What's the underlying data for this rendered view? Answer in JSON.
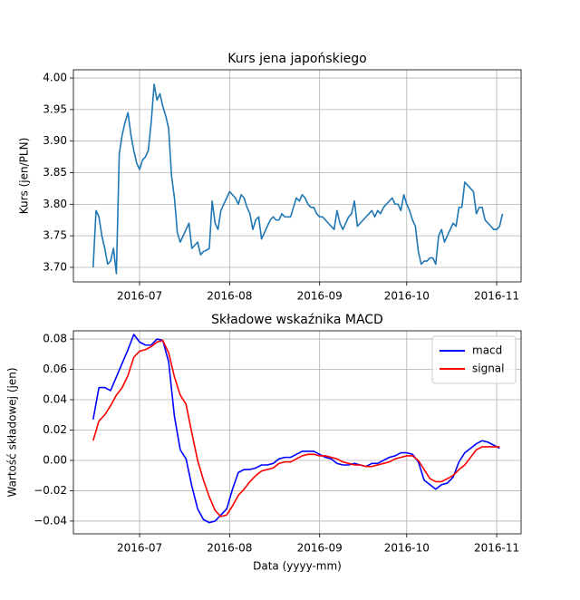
{
  "chart_data": [
    {
      "type": "line",
      "title": "Kurs jena japońskiego",
      "ylabel": "Kurs (jen/PLN)",
      "x": [
        167,
        168,
        169,
        170,
        171,
        172,
        173,
        174,
        175,
        176,
        177,
        178,
        179,
        180,
        181,
        182,
        183,
        184,
        185,
        186,
        187,
        188,
        189,
        190,
        191,
        192,
        193,
        194,
        195,
        196,
        197,
        198,
        199,
        200,
        201,
        202,
        203,
        204,
        205,
        206,
        207,
        208,
        209,
        210,
        211,
        212,
        213,
        214,
        215,
        216,
        217,
        218,
        219,
        220,
        221,
        222,
        223,
        224,
        225,
        226,
        227,
        228,
        229,
        230,
        231,
        232,
        233,
        234,
        235,
        236,
        237,
        238,
        239,
        240,
        241,
        242,
        243,
        244,
        245,
        246,
        247,
        248,
        249,
        250,
        251,
        252,
        253,
        254,
        255,
        256,
        257,
        258,
        259,
        260,
        261,
        262,
        263,
        264,
        265,
        266,
        267,
        268,
        269,
        270,
        271,
        272,
        273,
        274,
        275,
        276,
        277,
        278,
        279,
        280,
        281,
        282,
        283,
        284,
        285,
        286,
        287,
        288,
        289,
        290,
        291,
        292,
        293,
        294,
        295,
        296,
        297,
        298,
        299,
        300,
        301,
        302,
        303,
        304,
        305,
        306,
        307,
        308
      ],
      "series": [
        {
          "color": "#1f77b4",
          "values": [
            3.7,
            3.79,
            3.78,
            3.75,
            3.73,
            3.705,
            3.71,
            3.73,
            3.69,
            3.88,
            3.91,
            3.93,
            3.945,
            3.91,
            3.885,
            3.865,
            3.855,
            3.87,
            3.875,
            3.885,
            3.93,
            3.99,
            3.965,
            3.975,
            3.955,
            3.94,
            3.92,
            3.845,
            3.81,
            3.755,
            3.74,
            3.75,
            3.76,
            3.77,
            3.73,
            3.735,
            3.74,
            3.72,
            3.725,
            3.727,
            3.73,
            3.805,
            3.77,
            3.76,
            3.79,
            3.8,
            3.81,
            3.82,
            3.815,
            3.81,
            3.8,
            3.815,
            3.81,
            3.795,
            3.785,
            3.76,
            3.775,
            3.78,
            3.745,
            3.755,
            3.765,
            3.775,
            3.78,
            3.775,
            3.775,
            3.785,
            3.78,
            3.78,
            3.78,
            3.795,
            3.81,
            3.805,
            3.815,
            3.81,
            3.8,
            3.795,
            3.795,
            3.785,
            3.78,
            3.78,
            3.775,
            3.77,
            3.765,
            3.76,
            3.79,
            3.77,
            3.76,
            3.77,
            3.78,
            3.785,
            3.805,
            3.765,
            3.77,
            3.775,
            3.78,
            3.785,
            3.79,
            3.78,
            3.79,
            3.785,
            3.795,
            3.8,
            3.805,
            3.81,
            3.8,
            3.8,
            3.79,
            3.815,
            3.8,
            3.79,
            3.775,
            3.765,
            3.725,
            3.705,
            3.71,
            3.71,
            3.715,
            3.715,
            3.705,
            3.75,
            3.76,
            3.74,
            3.75,
            3.76,
            3.77,
            3.765,
            3.795,
            3.795,
            3.835,
            3.83,
            3.825,
            3.82,
            3.785,
            3.795,
            3.795,
            3.775,
            3.77,
            3.765,
            3.76,
            3.76,
            3.765,
            3.785
          ]
        }
      ],
      "xlim": [
        160.2,
        314.4
      ],
      "ylim": [
        3.677,
        4.013
      ],
      "xticks": [
        {
          "value": 183,
          "label": "2016-07"
        },
        {
          "value": 214,
          "label": "2016-08"
        },
        {
          "value": 245,
          "label": "2016-09"
        },
        {
          "value": 275,
          "label": "2016-10"
        },
        {
          "value": 306,
          "label": "2016-11"
        }
      ],
      "yticks": [
        {
          "value": 3.7,
          "label": "3.70"
        },
        3.75,
        {
          "value": 3.8,
          "label": "3.80"
        },
        3.85,
        {
          "value": 3.9,
          "label": "3.90"
        },
        3.95,
        {
          "value": 4,
          "label": "4.00"
        }
      ],
      "grid": true
    },
    {
      "type": "line",
      "title": "Składowe wskaźnika MACD",
      "xlabel": "Data (yyyy-mm)",
      "ylabel": "Wartość składowej (jen)",
      "x": [
        167,
        169,
        171,
        173,
        175,
        177,
        179,
        181,
        183,
        185,
        187,
        189,
        191,
        193,
        195,
        197,
        199,
        201,
        203,
        205,
        207,
        209,
        211,
        213,
        215,
        217,
        219,
        221,
        223,
        225,
        227,
        229,
        231,
        233,
        235,
        237,
        239,
        241,
        243,
        245,
        247,
        249,
        251,
        253,
        255,
        257,
        259,
        261,
        263,
        265,
        267,
        269,
        271,
        273,
        275,
        277,
        279,
        281,
        283,
        285,
        287,
        289,
        291,
        293,
        295,
        297,
        299,
        301,
        303,
        305,
        307
      ],
      "series": [
        {
          "name": "macd",
          "color": "#0000ff",
          "values": [
            0.027,
            0.048,
            0.048,
            0.046,
            0.055,
            0.064,
            0.073,
            0.083,
            0.078,
            0.076,
            0.076,
            0.08,
            0.079,
            0.065,
            0.029,
            0.007,
            0.001,
            -0.017,
            -0.032,
            -0.039,
            -0.041,
            -0.04,
            -0.036,
            -0.032,
            -0.019,
            -0.008,
            -0.006,
            -0.006,
            -0.005,
            -0.003,
            -0.003,
            -0.002,
            0.001,
            0.002,
            0.002,
            0.004,
            0.006,
            0.006,
            0.006,
            0.004,
            0.002,
            0.001,
            -0.002,
            -0.003,
            -0.003,
            -0.002,
            -0.003,
            -0.004,
            -0.002,
            -0.002,
            0.0,
            0.002,
            0.003,
            0.005,
            0.005,
            0.004,
            -0.001,
            -0.013,
            -0.016,
            -0.019,
            -0.016,
            -0.015,
            -0.011,
            -0.001,
            0.005,
            0.008,
            0.011,
            0.013,
            0.012,
            0.01,
            0.008
          ]
        },
        {
          "name": "signal",
          "color": "#ff0000",
          "values": [
            0.013,
            0.026,
            0.03,
            0.036,
            0.043,
            0.048,
            0.056,
            0.068,
            0.072,
            0.073,
            0.075,
            0.078,
            0.079,
            0.071,
            0.055,
            0.043,
            0.037,
            0.018,
            0.0,
            -0.013,
            -0.024,
            -0.033,
            -0.037,
            -0.036,
            -0.03,
            -0.023,
            -0.019,
            -0.014,
            -0.01,
            -0.007,
            -0.006,
            -0.005,
            -0.002,
            -0.001,
            -0.001,
            0.001,
            0.003,
            0.004,
            0.004,
            0.003,
            0.003,
            0.002,
            0.001,
            -0.001,
            -0.002,
            -0.003,
            -0.003,
            -0.004,
            -0.004,
            -0.003,
            -0.002,
            -0.001,
            0.001,
            0.002,
            0.003,
            0.003,
            0.0,
            -0.006,
            -0.012,
            -0.014,
            -0.014,
            -0.012,
            -0.01,
            -0.006,
            -0.003,
            0.002,
            0.007,
            0.009,
            0.009,
            0.009,
            0.009
          ]
        }
      ],
      "xlim": [
        160.2,
        314.4
      ],
      "ylim": [
        -0.0484,
        0.0854
      ],
      "xticks": [
        {
          "value": 183,
          "label": "2016-07"
        },
        {
          "value": 214,
          "label": "2016-08"
        },
        {
          "value": 245,
          "label": "2016-09"
        },
        {
          "value": 275,
          "label": "2016-10"
        },
        {
          "value": 306,
          "label": "2016-11"
        }
      ],
      "yticks": [
        {
          "value": -0.04,
          "label": "−0.04"
        },
        {
          "value": -0.02,
          "label": "−0.02"
        },
        {
          "value": 0,
          "label": "0.00"
        },
        0.02,
        0.04,
        0.06,
        0.08
      ],
      "grid": true,
      "legend": "upper right"
    }
  ]
}
